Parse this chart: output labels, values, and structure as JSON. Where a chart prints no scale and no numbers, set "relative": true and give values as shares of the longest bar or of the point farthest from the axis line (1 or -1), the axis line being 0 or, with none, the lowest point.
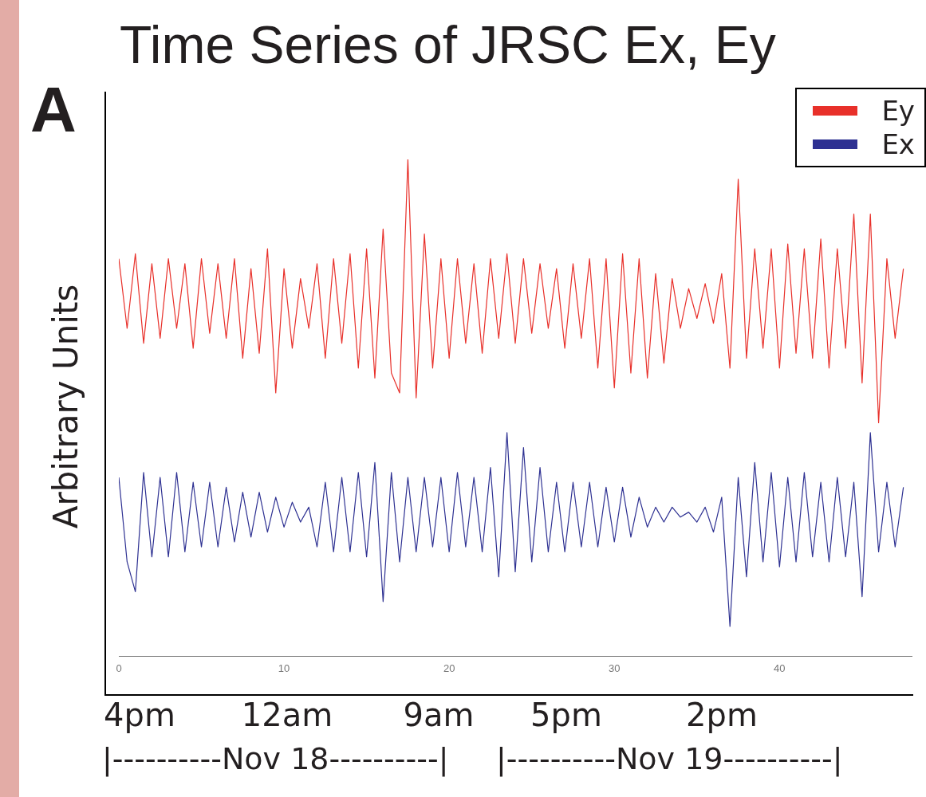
{
  "chart_data": {
    "type": "line",
    "title": "Time Series of JRSC Ex, Ey",
    "ylabel": "Arbitrary Units",
    "relative": true,
    "grid": false,
    "legend": "top right",
    "annotations": [
      "A",
      "4pm",
      "12am",
      "9am",
      "5pm",
      "2pm",
      "|----------Nov 18----------|",
      "|----------Nov 19----------|"
    ],
    "xlim": [
      0,
      48
    ],
    "xticks": [
      0,
      10,
      20,
      30,
      40
    ],
    "x": [
      0,
      0.5,
      1,
      1.5,
      2,
      2.5,
      3,
      3.5,
      4,
      4.5,
      5,
      5.5,
      6,
      6.5,
      7,
      7.5,
      8,
      8.5,
      9,
      9.5,
      10,
      10.5,
      11,
      11.5,
      12,
      12.5,
      13,
      13.5,
      14,
      14.5,
      15,
      15.5,
      16,
      16.5,
      17,
      17.5,
      18,
      18.5,
      19,
      19.5,
      20,
      20.5,
      21,
      21.5,
      22,
      22.5,
      23,
      23.5,
      24,
      24.5,
      25,
      25.5,
      26,
      26.5,
      27,
      27.5,
      28,
      28.5,
      29,
      29.5,
      30,
      30.5,
      31,
      31.5,
      32,
      32.5,
      33,
      33.5,
      34,
      34.5,
      35,
      35.5,
      36,
      36.5,
      37,
      37.5,
      38,
      38.5,
      39,
      39.5,
      40,
      40.5,
      41,
      41.5,
      42,
      42.5,
      43,
      43.5,
      44,
      44.5,
      45,
      45.5,
      46,
      46.5,
      47,
      47.5
    ],
    "series": [
      {
        "name": "Ey",
        "color": "#e8302a",
        "values": [
          0.8,
          0.66,
          0.81,
          0.63,
          0.79,
          0.64,
          0.8,
          0.66,
          0.79,
          0.62,
          0.8,
          0.65,
          0.79,
          0.64,
          0.8,
          0.6,
          0.78,
          0.61,
          0.82,
          0.53,
          0.78,
          0.62,
          0.76,
          0.66,
          0.79,
          0.6,
          0.8,
          0.63,
          0.81,
          0.58,
          0.82,
          0.56,
          0.86,
          0.57,
          0.53,
          1.0,
          0.52,
          0.85,
          0.58,
          0.8,
          0.6,
          0.8,
          0.63,
          0.79,
          0.61,
          0.8,
          0.64,
          0.81,
          0.63,
          0.8,
          0.65,
          0.79,
          0.66,
          0.78,
          0.62,
          0.79,
          0.64,
          0.8,
          0.58,
          0.8,
          0.54,
          0.81,
          0.57,
          0.8,
          0.56,
          0.77,
          0.59,
          0.76,
          0.66,
          0.74,
          0.68,
          0.75,
          0.67,
          0.77,
          0.58,
          0.96,
          0.6,
          0.82,
          0.62,
          0.82,
          0.58,
          0.83,
          0.61,
          0.82,
          0.6,
          0.84,
          0.58,
          0.82,
          0.62,
          0.89,
          0.55,
          0.89,
          0.47,
          0.8,
          0.64,
          0.78
        ]
      },
      {
        "name": "Ex",
        "color": "#2e3192",
        "values": [
          0.36,
          0.19,
          0.13,
          0.37,
          0.2,
          0.36,
          0.2,
          0.37,
          0.21,
          0.35,
          0.22,
          0.35,
          0.22,
          0.34,
          0.23,
          0.33,
          0.24,
          0.33,
          0.25,
          0.32,
          0.26,
          0.31,
          0.27,
          0.3,
          0.22,
          0.35,
          0.21,
          0.36,
          0.21,
          0.37,
          0.2,
          0.39,
          0.11,
          0.37,
          0.19,
          0.36,
          0.21,
          0.36,
          0.22,
          0.36,
          0.21,
          0.37,
          0.22,
          0.36,
          0.21,
          0.38,
          0.16,
          0.45,
          0.17,
          0.42,
          0.19,
          0.38,
          0.21,
          0.35,
          0.21,
          0.35,
          0.22,
          0.35,
          0.22,
          0.34,
          0.23,
          0.34,
          0.24,
          0.32,
          0.26,
          0.3,
          0.27,
          0.3,
          0.28,
          0.29,
          0.27,
          0.3,
          0.25,
          0.32,
          0.06,
          0.36,
          0.16,
          0.39,
          0.19,
          0.37,
          0.18,
          0.36,
          0.19,
          0.37,
          0.2,
          0.35,
          0.19,
          0.36,
          0.2,
          0.35,
          0.12,
          0.45,
          0.21,
          0.35,
          0.22,
          0.34
        ]
      }
    ]
  }
}
